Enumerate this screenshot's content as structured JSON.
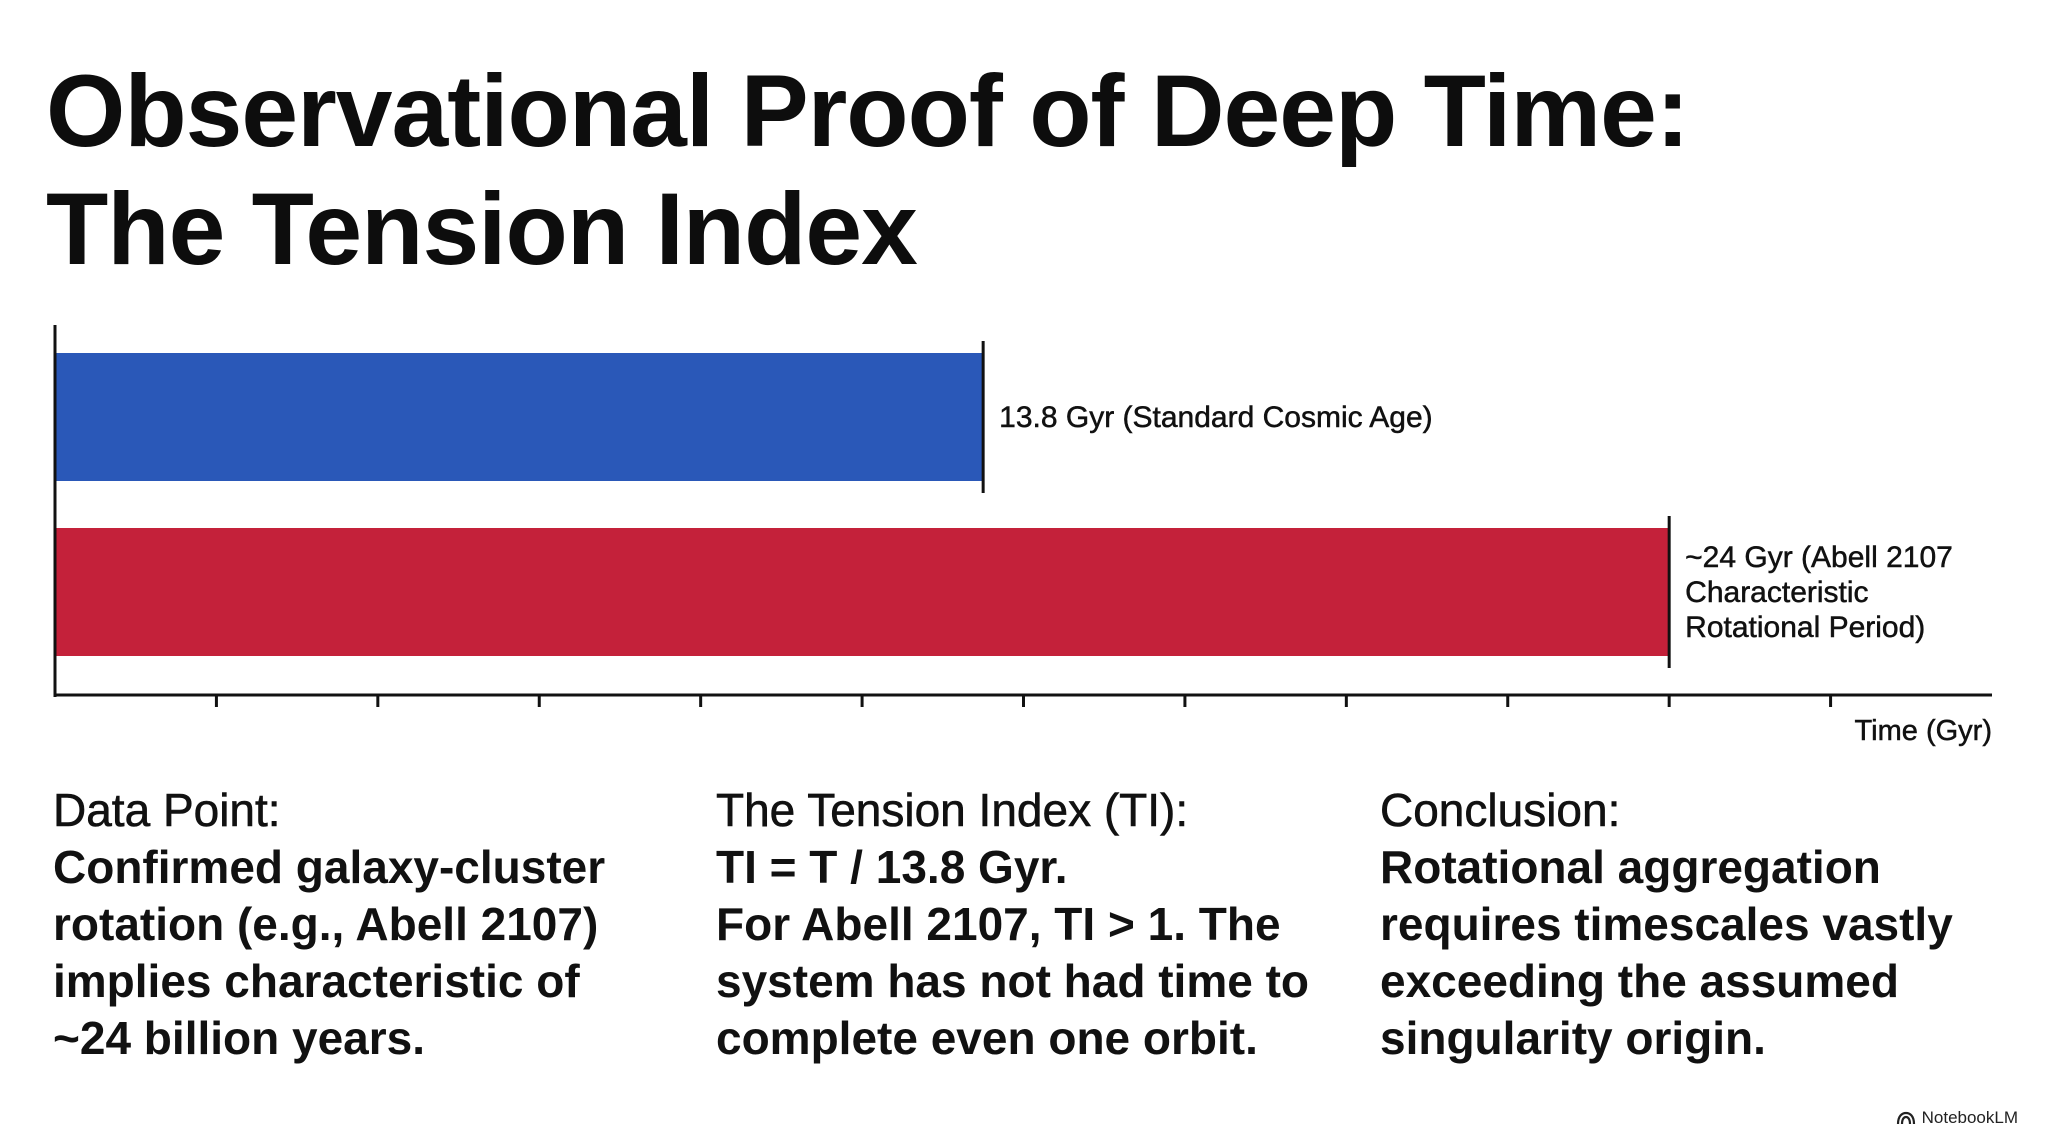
{
  "header": {
    "title_line1": "Observational Proof of Deep Time:",
    "title_line2": "The Tension Index"
  },
  "chart_data": {
    "type": "bar",
    "orientation": "horizontal",
    "categories": [
      "13.8 Gyr (Standard Cosmic Age)",
      "~24 Gyr (Abell 2107 Characteristic Rotational Period)"
    ],
    "values": [
      13.8,
      24
    ],
    "bar_labels": [
      [
        "13.8 Gyr (Standard Cosmic Age)"
      ],
      [
        "~24 Gyr (Abell 2107",
        "Characteristic",
        "Rotational Period)"
      ]
    ],
    "colors": [
      "#2a58b8",
      "#c4213a"
    ],
    "xlabel": "Time (Gyr)",
    "xlim": [
      0,
      28.8
    ],
    "x_ticks": [
      2.4,
      4.8,
      7.2,
      9.6,
      12.0,
      14.4,
      16.8,
      19.2,
      21.6,
      24.0,
      26.4
    ],
    "tick_labels_shown": false,
    "grid": false,
    "legend": "none"
  },
  "columns": [
    {
      "heading": "Data Point:",
      "lines": [
        "Confirmed galaxy-cluster",
        "rotation (e.g., Abell 2107)",
        "implies characteristic of",
        "~24 billion years."
      ]
    },
    {
      "heading": "The Tension Index (TI):",
      "lines": [
        "TI = T / 13.8 Gyr.",
        "For Abell 2107, TI > 1. The",
        "system has not had time to",
        "complete even one orbit."
      ]
    },
    {
      "heading": "Conclusion:",
      "lines": [
        "Rotational aggregation",
        "requires timescales vastly",
        "exceeding the assumed",
        "singularity origin."
      ]
    }
  ],
  "footer": {
    "brand": "NotebookLM"
  }
}
